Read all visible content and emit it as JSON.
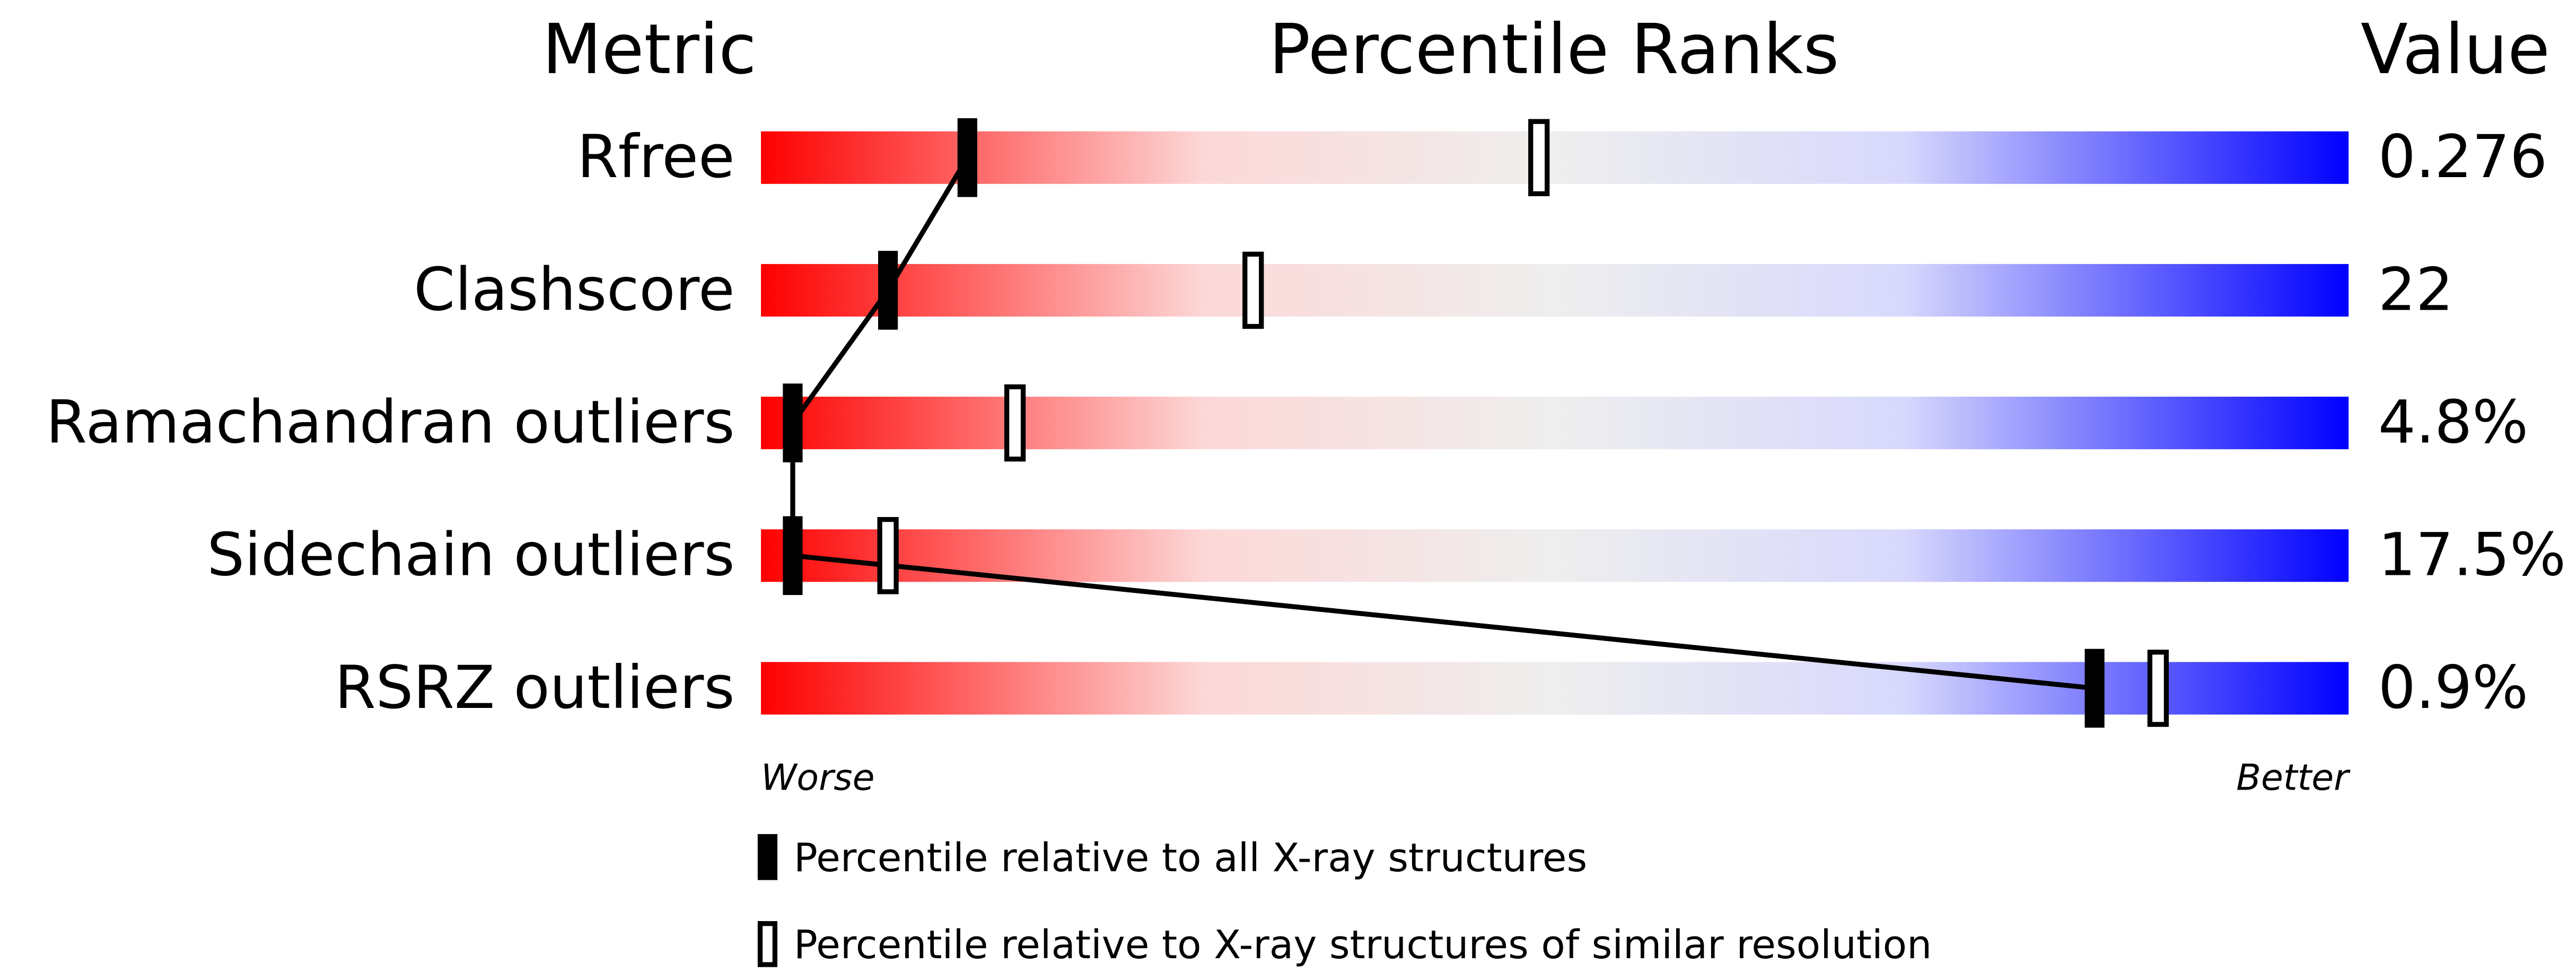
{
  "chart_data": {
    "type": "slider",
    "headers": [
      "Metric",
      "Percentile Ranks",
      "Value"
    ],
    "categories": [
      "Rfree",
      "Clashscore",
      "Ramachandran outliers",
      "Sidechain outliers",
      "RSRZ outliers"
    ],
    "value_column": [
      "0.276",
      "22",
      "4.8%",
      "17.5%",
      "0.9%"
    ],
    "xlim": [
      0,
      100
    ],
    "x_label_low": "Worse",
    "x_label_high": "Better",
    "series": [
      {
        "name": "Percentile relative to all X-ray structures",
        "color": "#000000",
        "style": "filled",
        "values": [
          13,
          8,
          2,
          2,
          84
        ]
      },
      {
        "name": "Percentile relative to X-ray structures of similar resolution",
        "color": "#000000",
        "style": "open",
        "values": [
          49,
          31,
          16,
          8,
          88
        ]
      }
    ],
    "gradient": [
      "#ff0000",
      "#fdd8d8",
      "#eeeeee",
      "#d8d8fd",
      "#0000ff"
    ]
  }
}
